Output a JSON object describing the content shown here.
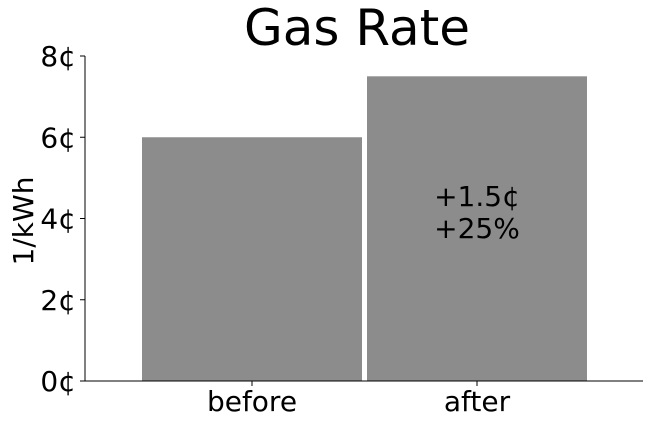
{
  "chart_data": {
    "type": "bar",
    "title": "Gas Rate",
    "ylabel": "1/kWh",
    "xlabel": "",
    "categories": [
      "before",
      "after"
    ],
    "values": [
      6.0,
      7.5
    ],
    "ylim": [
      0,
      8
    ],
    "yticks": [
      {
        "value": 0,
        "label": "0¢"
      },
      {
        "value": 2,
        "label": "2¢"
      },
      {
        "value": 4,
        "label": "4¢"
      },
      {
        "value": 6,
        "label": "6¢"
      },
      {
        "value": 8,
        "label": "8¢"
      }
    ],
    "bar_color": "#8c8c8c",
    "grid": false,
    "annotation": {
      "category": "after",
      "lines": [
        "+1.5¢",
        "+25%"
      ]
    }
  }
}
